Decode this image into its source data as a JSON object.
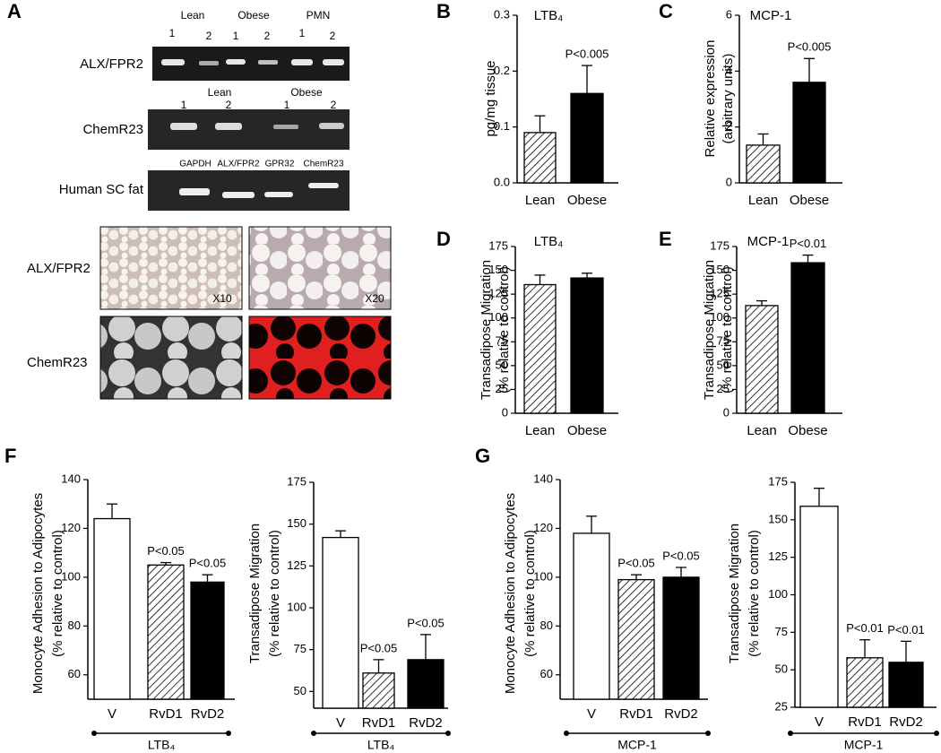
{
  "panels": [
    "A",
    "B",
    "C",
    "D",
    "E",
    "F",
    "G"
  ],
  "panel_a": {
    "gels": [
      {
        "label": "ALX/FPR2",
        "groups": [
          "Lean",
          "Obese",
          "PMN"
        ],
        "lanes": [
          "1",
          "2",
          "1",
          "2",
          "1",
          "2"
        ]
      },
      {
        "label": "ChemR23",
        "groups": [
          "Lean",
          "Obese"
        ],
        "lanes": [
          "1",
          "2",
          "1",
          "2"
        ]
      },
      {
        "label": "Human SC fat",
        "lanes": [
          "GAPDH",
          "ALX/FPR2",
          "GPR32",
          "ChemR23"
        ]
      }
    ],
    "micrographs": {
      "rows": [
        "ALX/FPR2",
        "ChemR23"
      ],
      "magnifications": [
        "X10",
        "X20"
      ]
    }
  },
  "chart_data": [
    {
      "type": "bar",
      "title": "LTB₄",
      "ylabel": [
        "pg/mg tissue"
      ],
      "categories": [
        "Lean",
        "Obese"
      ],
      "values": [
        0.09,
        0.16
      ],
      "errors": [
        0.03,
        0.05
      ],
      "patterns": [
        "hatch",
        "solid"
      ],
      "color": "#000000",
      "annotations": [
        null,
        "P<0.005"
      ],
      "ylim": [
        0,
        0.3
      ],
      "yticks": [
        {
          "value": 0,
          "label": "0.0"
        },
        0.1,
        0.2,
        0.3
      ]
    },
    {
      "type": "bar",
      "title": "MCP-1",
      "ylabel": [
        "Relative expression",
        "(arbitrary units)"
      ],
      "categories": [
        "Lean",
        "Obese"
      ],
      "values": [
        1.35,
        3.6
      ],
      "errors": [
        0.4,
        0.85
      ],
      "patterns": [
        "hatch",
        "solid"
      ],
      "color": "#000000",
      "annotations": [
        null,
        "P<0.005"
      ],
      "ylim": [
        0,
        6
      ],
      "yticks": [
        0,
        2,
        4,
        6
      ]
    },
    {
      "type": "bar",
      "title": "LTB₄",
      "ylabel": [
        "Transadipose Migration",
        "(% relative to control)"
      ],
      "categories": [
        "Lean",
        "Obese"
      ],
      "values": [
        135,
        142
      ],
      "errors": [
        10,
        5
      ],
      "patterns": [
        "hatch",
        "solid"
      ],
      "color": "#000000",
      "ylim": [
        0,
        175
      ],
      "yticks": [
        0,
        25,
        50,
        75,
        100,
        125,
        150,
        175
      ]
    },
    {
      "type": "bar",
      "title": "MCP-1",
      "ylabel": [
        "Transadipose Migration",
        "(% relative to control)"
      ],
      "categories": [
        "Lean",
        "Obese"
      ],
      "values": [
        113,
        158
      ],
      "errors": [
        5,
        8
      ],
      "patterns": [
        "hatch",
        "solid"
      ],
      "color": "#000000",
      "annotations": [
        null,
        "P<0.01"
      ],
      "ylim": [
        0,
        175
      ],
      "yticks": [
        0,
        25,
        50,
        75,
        100,
        125,
        150,
        175
      ]
    },
    {
      "type": "bar",
      "xlabel": "LTB₄",
      "ylabel": [
        "Monocyte Adhesion to Adipocytes",
        "(% relative to control)"
      ],
      "categories": [
        "V",
        "RvD1",
        "RvD2"
      ],
      "values": [
        124,
        105,
        98
      ],
      "errors": [
        6,
        1,
        3
      ],
      "patterns": [
        "none",
        "hatch",
        "solid"
      ],
      "color": "#000000",
      "annotations": [
        null,
        "P<0.05",
        "P<0.05"
      ],
      "ylim": [
        50,
        140
      ],
      "yticks": [
        60,
        80,
        100,
        120,
        140
      ]
    },
    {
      "type": "bar",
      "xlabel": "LTB₄",
      "ylabel": [
        "Transadipose Migration",
        "(% relative to control)"
      ],
      "categories": [
        "V",
        "RvD1",
        "RvD2"
      ],
      "values": [
        142,
        61,
        69
      ],
      "errors": [
        4,
        8,
        15
      ],
      "patterns": [
        "none",
        "hatch",
        "solid"
      ],
      "color": "#000000",
      "annotations": [
        null,
        "P<0.05",
        "P<0.05"
      ],
      "ylim": [
        40,
        175
      ],
      "yticks": [
        50,
        75,
        100,
        125,
        150,
        175
      ]
    },
    {
      "type": "bar",
      "xlabel": "MCP-1",
      "ylabel": [
        "Monocyte Adhesion to  Adipocytes",
        "(% relative to control)"
      ],
      "categories": [
        "V",
        "RvD1",
        "RvD2"
      ],
      "values": [
        118,
        99,
        100
      ],
      "errors": [
        7,
        2,
        4
      ],
      "patterns": [
        "none",
        "hatch",
        "solid"
      ],
      "color": "#000000",
      "annotations": [
        null,
        "P<0.05",
        "P<0.05"
      ],
      "ylim": [
        50,
        140
      ],
      "yticks": [
        60,
        80,
        100,
        120,
        140
      ]
    },
    {
      "type": "bar",
      "xlabel": "MCP-1",
      "ylabel": [
        "Transadipose Migration",
        "(% relative to control)"
      ],
      "categories": [
        "V",
        "RvD1",
        "RvD2"
      ],
      "values": [
        159,
        58,
        55
      ],
      "errors": [
        12,
        12,
        14
      ],
      "patterns": [
        "none",
        "hatch",
        "solid"
      ],
      "color": "#000000",
      "annotations": [
        null,
        "P<0.01",
        "P<0.01"
      ],
      "ylim": [
        25,
        175
      ],
      "yticks": [
        25,
        50,
        75,
        100,
        125,
        150,
        175
      ]
    }
  ]
}
